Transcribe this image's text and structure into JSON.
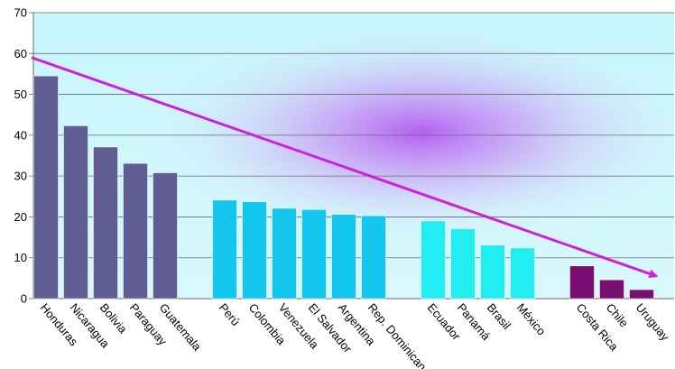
{
  "chart_data": {
    "type": "bar",
    "title": "",
    "xlabel": "",
    "ylabel": "",
    "ylim": [
      0,
      70
    ],
    "yticks": [
      0,
      10,
      20,
      30,
      40,
      50,
      60,
      70
    ],
    "grid": true,
    "categories": [
      "Honduras",
      "Nicaragua",
      "Bolivia",
      "Paraguay",
      "Guatemala",
      "Perú",
      "Colombia",
      "Venezuela",
      "El Salvador",
      "Argentina",
      "Rep. Dominicana",
      "Ecuador",
      "Panamá",
      "Brasil",
      "México",
      "Costa Rica",
      "Chile",
      "Uruguay"
    ],
    "values": [
      54.5,
      42.3,
      37.1,
      33.1,
      30.8,
      24.1,
      23.7,
      22.1,
      21.8,
      20.6,
      20.3,
      19.0,
      17.1,
      13.1,
      12.4,
      8.0,
      4.6,
      2.2
    ],
    "groups": [
      {
        "color": "#5f5d91",
        "categories": [
          "Honduras",
          "Nicaragua",
          "Bolivia",
          "Paraguay",
          "Guatemala"
        ]
      },
      {
        "color": "#12c6ee",
        "categories": [
          "Perú",
          "Colombia",
          "Venezuela",
          "El Salvador",
          "Argentina",
          "Rep. Dominicana"
        ]
      },
      {
        "color": "#22eef2",
        "categories": [
          "Ecuador",
          "Panamá",
          "Brasil",
          "México"
        ]
      },
      {
        "color": "#7a0f72",
        "categories": [
          "Costa Rica",
          "Chile",
          "Uruguay"
        ]
      }
    ],
    "trend_arrow": {
      "from": [
        0,
        59
      ],
      "to": [
        17.5,
        5.5
      ],
      "color": "#cc22dd"
    },
    "background": "plot area light blue with purple radial glow"
  }
}
